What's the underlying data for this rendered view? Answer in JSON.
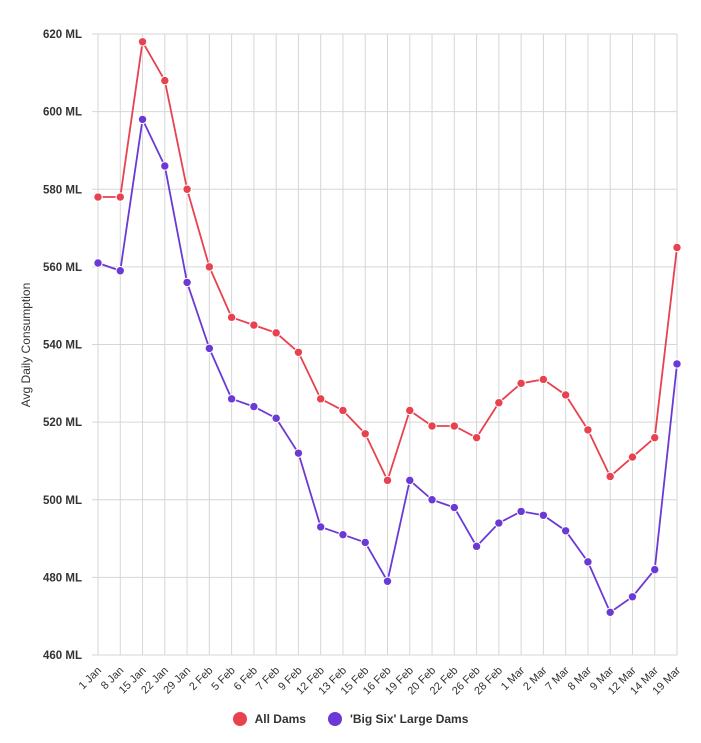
{
  "chart_data": {
    "type": "line",
    "title": "",
    "xlabel": "",
    "ylabel": "Avg Daily Consumption",
    "ylim": [
      460,
      620
    ],
    "yticks": [
      460,
      480,
      500,
      520,
      540,
      560,
      580,
      600,
      620
    ],
    "ytick_labels": [
      "460 ML",
      "480 ML",
      "500 ML",
      "520 ML",
      "540 ML",
      "560 ML",
      "580 ML",
      "600 ML",
      "620 ML"
    ],
    "grid": true,
    "legend_position": "bottom",
    "categories": [
      "1 Jan",
      "8 Jan",
      "15 Jan",
      "22 Jan",
      "29 Jan",
      "2 Feb",
      "5 Feb",
      "6 Feb",
      "7 Feb",
      "9 Feb",
      "12 Feb",
      "13 Feb",
      "15 Feb",
      "16 Feb",
      "19 Feb",
      "20 Feb",
      "22 Feb",
      "26 Feb",
      "28 Feb",
      "1 Mar",
      "2 Mar",
      "7 Mar",
      "8 Mar",
      "9 Mar",
      "12 Mar",
      "14 Mar",
      "19 Mar"
    ],
    "series": [
      {
        "name": "All Dams",
        "color": "#e8414f",
        "values": [
          578,
          578,
          618,
          608,
          580,
          560,
          547,
          545,
          543,
          538,
          526,
          523,
          517,
          505,
          523,
          519,
          519,
          516,
          525,
          530,
          531,
          527,
          518,
          506,
          511,
          516,
          565
        ]
      },
      {
        "name": "'Big Six' Large Dams",
        "color": "#6b3ad6",
        "values": [
          561,
          559,
          598,
          586,
          556,
          539,
          526,
          524,
          521,
          512,
          493,
          491,
          489,
          479,
          505,
          500,
          498,
          488,
          494,
          497,
          496,
          492,
          484,
          471,
          475,
          482,
          535
        ]
      }
    ]
  }
}
